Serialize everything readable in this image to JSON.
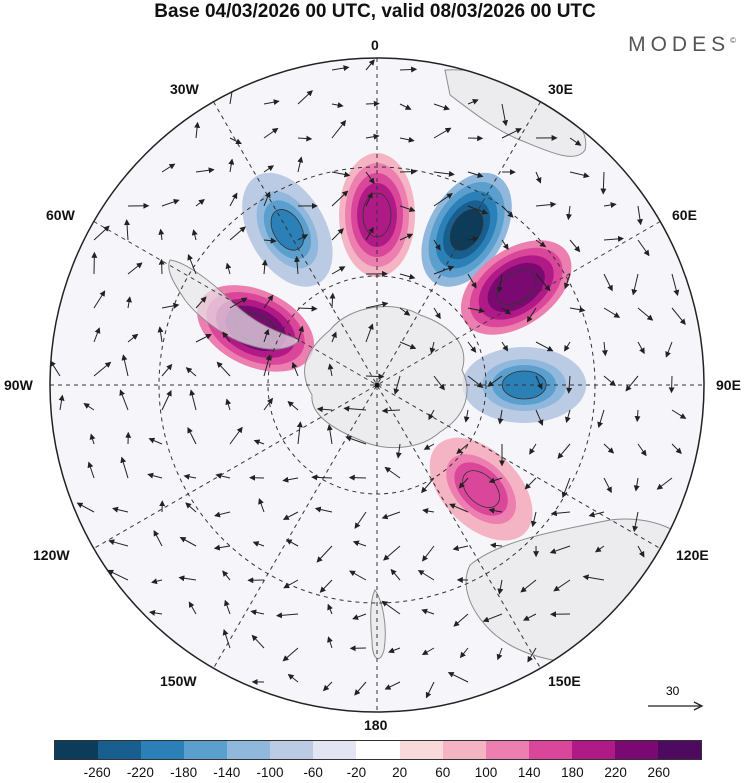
{
  "header": {
    "title": "Base 04/03/2026 00 UTC, valid 08/03/2026 00 UTC",
    "brand": "MODES",
    "brand_mark": "©"
  },
  "map": {
    "projection": "south polar stereographic",
    "longitude_labels": {
      "top": "0",
      "top_left": "30W",
      "top_right": "30E",
      "upper_left": "60W",
      "upper_right": "60E",
      "left": "90W",
      "right": "90E",
      "lower_left": "120W",
      "lower_right": "120E",
      "bottom_left": "150W",
      "bottom_right": "150E",
      "bottom": "180"
    },
    "vector_scale_label": "30",
    "anomaly_features": [
      {
        "sign": "positive",
        "approx_lon_deg": 0,
        "approx_lat_deg": -50,
        "peak": 220
      },
      {
        "sign": "negative",
        "approx_lon_deg": -30,
        "approx_lat_deg": -48,
        "peak": -180
      },
      {
        "sign": "negative",
        "approx_lon_deg": 30,
        "approx_lat_deg": -48,
        "peak": -260
      },
      {
        "sign": "positive",
        "approx_lon_deg": 55,
        "approx_lat_deg": -50,
        "peak": 260
      },
      {
        "sign": "positive",
        "approx_lon_deg": -65,
        "approx_lat_deg": -58,
        "peak": 260
      },
      {
        "sign": "negative",
        "approx_lon_deg": 90,
        "approx_lat_deg": -55,
        "peak": -180
      },
      {
        "sign": "positive",
        "approx_lon_deg": 135,
        "approx_lat_deg": -55,
        "peak": 180
      }
    ]
  },
  "colorbar": {
    "ticks": [
      "-260",
      "-220",
      "-180",
      "-140",
      "-100",
      "-60",
      "-20",
      "20",
      "60",
      "100",
      "140",
      "180",
      "220",
      "260"
    ],
    "colors": [
      "#0d3c5a",
      "#185f8f",
      "#2b80b8",
      "#5a9fcd",
      "#8fb8dc",
      "#bccbe4",
      "#e3e6f2",
      "#ffffff",
      "#f9dadb",
      "#f4b4c4",
      "#ec7eb0",
      "#d9469a",
      "#b01a86",
      "#7a0a72",
      "#4e0a5e"
    ]
  }
}
